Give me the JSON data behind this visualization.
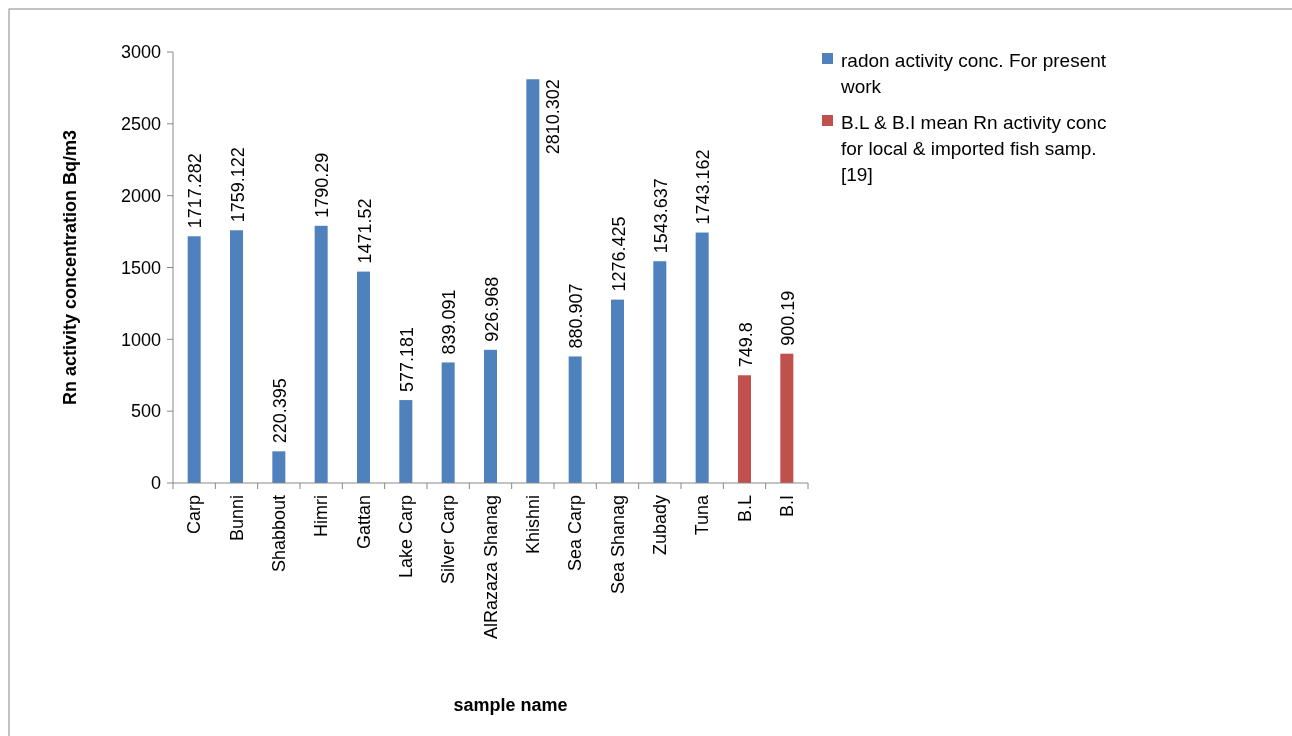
{
  "chart_data": {
    "type": "bar",
    "xlabel": "sample name",
    "ylabel": "Rn activity concentration Bq/m3",
    "categories": [
      "Carp",
      "Bunni",
      "Shabbout",
      "Himri",
      "Gattan",
      "Lake Carp",
      "Silver Carp",
      "AlRazaza Shanag",
      "Khishni",
      "Sea Carp",
      "Sea Shanag",
      "Zubady",
      "Tuna",
      "B.L",
      "B.I"
    ],
    "series": [
      {
        "name": "radon activity conc. For present work",
        "color": "#4f81bd",
        "values": [
          1717.282,
          1759.122,
          220.395,
          1790.29,
          1471.52,
          577.181,
          839.091,
          926.968,
          2810.302,
          880.907,
          1276.425,
          1543.637,
          1743.162,
          null,
          null
        ]
      },
      {
        "name": "B.L & B.I mean Rn activity conc for local & imported fish samp. [19]",
        "color": "#c0504d",
        "values": [
          null,
          null,
          null,
          null,
          null,
          null,
          null,
          null,
          null,
          null,
          null,
          null,
          null,
          749.8,
          900.19
        ]
      }
    ],
    "ylim": [
      0,
      3000
    ],
    "yticks": [
      0,
      500,
      1000,
      1500,
      2000,
      2500,
      3000
    ],
    "data_labels": true,
    "legend": "top right",
    "grid": false
  }
}
